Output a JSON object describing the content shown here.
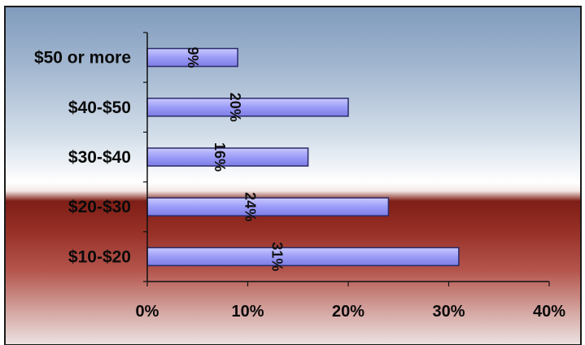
{
  "chart_data": {
    "type": "bar",
    "orientation": "horizontal",
    "categories": [
      "$50 or more",
      "$40-$50",
      "$30-$40",
      "$20-$30",
      "$10-$20"
    ],
    "values": [
      9,
      20,
      16,
      24,
      31
    ],
    "data_labels": [
      "9%",
      "20%",
      "16%",
      "24%",
      "31%"
    ],
    "x_ticks": [
      "0%",
      "10%",
      "20%",
      "30%",
      "40%"
    ],
    "xlim": [
      0,
      40
    ],
    "grid": false,
    "legend": "none",
    "colors": {
      "bar_fill": "#9c9cf8",
      "bar_edge": "#2a2a6a",
      "sky_top": "#8da6c6",
      "sky_bottom": "#ffffff",
      "band_dark": "#7a1c14",
      "band_light": "#e2d2d0"
    }
  }
}
